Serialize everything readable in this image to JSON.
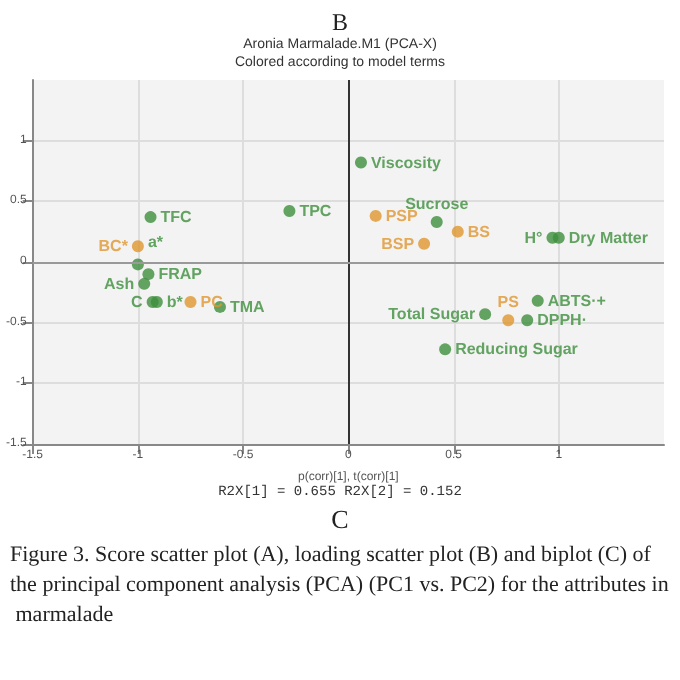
{
  "chart_data": {
    "type": "scatter",
    "title": "Aronia Marmalade.M1 (PCA-X)",
    "subtitle": "Colored according to model terms",
    "xlabel": "p(corr)[1], t(corr)[1]",
    "annotations": [
      "B",
      "R2X[1] = 0.655 R2X[2] = 0.152",
      "C",
      "Figure 3. Score scatter plot (A), loading scatter plot (B) and biplot (C) of the principal component analysis (PCA) (PC1 vs. PC2) for the attributes in marmalade"
    ],
    "xlim": [
      -1.5,
      1.5
    ],
    "ylim": [
      -1.5,
      1.5
    ],
    "xticks": [
      -1.5,
      -1,
      -0.5,
      0,
      0.5,
      1
    ],
    "yticks": [
      -1.5,
      -1,
      -0.5,
      0,
      0.5,
      1
    ],
    "grid": true,
    "marker": "circle",
    "ref_lines": [
      {
        "axis": "x",
        "value": 0,
        "color": "#333333"
      },
      {
        "axis": "y",
        "value": 0,
        "color": "#999999"
      }
    ],
    "series": [
      {
        "color": "#3d8f3d",
        "x": [
          -0.94,
          -1.0,
          -0.95,
          -0.97,
          -0.93,
          -0.91,
          -0.61,
          -0.28,
          0.06,
          0.42,
          0.97,
          1.0,
          0.9,
          0.85,
          0.65,
          0.46
        ],
        "values": [
          0.37,
          -0.02,
          -0.1,
          -0.18,
          -0.33,
          -0.33,
          -0.37,
          0.42,
          0.82,
          0.33,
          0.2,
          0.2,
          -0.32,
          -0.48,
          -0.43,
          -0.72
        ],
        "value_labels": [
          "TFC",
          "a*",
          "FRAP",
          "Ash",
          "C",
          "b*",
          "TMA",
          "TPC",
          "Viscosity",
          "Sucrose",
          "H°",
          "Dry Matter",
          "ABTS·+",
          "DPPH·",
          "Total Sugar",
          "Reducing Sugar"
        ]
      },
      {
        "color": "#e0962e",
        "x": [
          -1.0,
          -0.75,
          0.13,
          0.36,
          0.52,
          0.76
        ],
        "values": [
          0.13,
          -0.33,
          0.38,
          0.15,
          0.25,
          -0.48
        ],
        "value_labels": [
          "BC*",
          "PC",
          "PSP",
          "BSP",
          "BS",
          "PS"
        ]
      }
    ]
  }
}
